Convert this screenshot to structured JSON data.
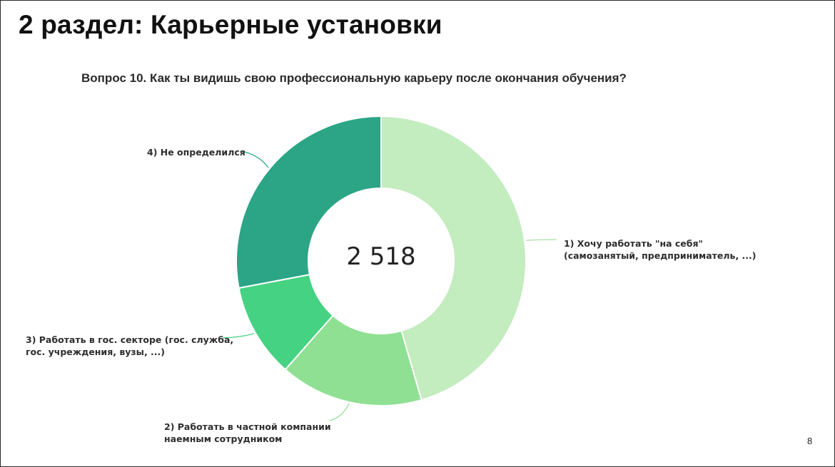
{
  "slide": {
    "title": "2 раздел: Карьерные установки",
    "page_number": "8"
  },
  "chart_data": {
    "type": "pie",
    "variant": "donut",
    "title": "Вопрос 10. Как ты видишь свою профессиональную карьеру после окончания обучения?",
    "center_label": "2 518",
    "slices": [
      {
        "label_lines": [
          "1) Хочу работать \"на себя\"",
          "(самозанятый, предприниматель, ...)"
        ],
        "value": 45.5,
        "color": "#c3ecbf"
      },
      {
        "label_lines": [
          "2) Работать в частной компании",
          "наемным сотрудником"
        ],
        "value": 16.0,
        "color": "#8fe093"
      },
      {
        "label_lines": [
          "3) Работать в гос. секторе (гос. служба,",
          "гос. учреждения, вузы, ...)"
        ],
        "value": 10.5,
        "color": "#45d282"
      },
      {
        "label_lines": [
          "4) Не определился"
        ],
        "value": 28.0,
        "color": "#2ba586"
      }
    ]
  }
}
